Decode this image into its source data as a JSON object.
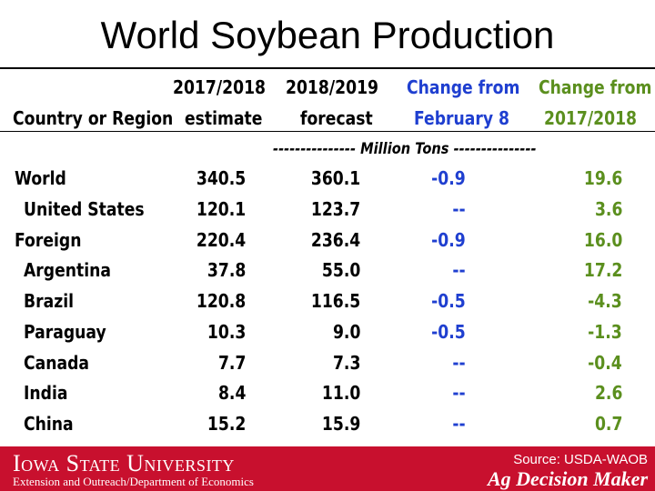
{
  "slide": {
    "title": "World Soybean Production"
  },
  "table": {
    "headers": {
      "country": "Country or Region",
      "est_line1": "2017/2018",
      "est_line2": "estimate",
      "fc_line1": "2018/2019",
      "fc_line2": "forecast",
      "chg1_line1": "Change from",
      "chg1_line2": "February 8",
      "chg2_line1": "Change from",
      "chg2_line2": "2017/2018"
    },
    "units": "---------------  Million Tons  ---------------",
    "rows": [
      {
        "name": "World",
        "est": "340.5",
        "fc": "360.1",
        "chg_feb": "-0.9",
        "chg_prev": "19.6"
      },
      {
        "name": "United States",
        "est": "120.1",
        "fc": "123.7",
        "chg_feb": "--",
        "chg_prev": "3.6"
      },
      {
        "name": "Foreign",
        "est": "220.4",
        "fc": "236.4",
        "chg_feb": "-0.9",
        "chg_prev": "16.0"
      },
      {
        "name": "Argentina",
        "est": "37.8",
        "fc": "55.0",
        "chg_feb": "--",
        "chg_prev": "17.2"
      },
      {
        "name": "Brazil",
        "est": "120.8",
        "fc": "116.5",
        "chg_feb": "-0.5",
        "chg_prev": "-4.3"
      },
      {
        "name": "Paraguay",
        "est": "10.3",
        "fc": "9.0",
        "chg_feb": "-0.5",
        "chg_prev": "-1.3"
      },
      {
        "name": "Canada",
        "est": "7.7",
        "fc": "7.3",
        "chg_feb": "--",
        "chg_prev": "-0.4"
      },
      {
        "name": "India",
        "est": "8.4",
        "fc": "11.0",
        "chg_feb": "--",
        "chg_prev": "2.6"
      },
      {
        "name": "China",
        "est": "15.2",
        "fc": "15.9",
        "chg_feb": "--",
        "chg_prev": "0.7"
      }
    ]
  },
  "footer": {
    "logo": "Iowa State University",
    "subtitle": "Extension and Outreach/Department of Economics",
    "source": "Source: USDA-WAOB",
    "brand": "Ag Decision Maker"
  },
  "colors": {
    "blue": "#1f3fd0",
    "green": "#5b8f1e",
    "footer_red": "#c8102e"
  }
}
